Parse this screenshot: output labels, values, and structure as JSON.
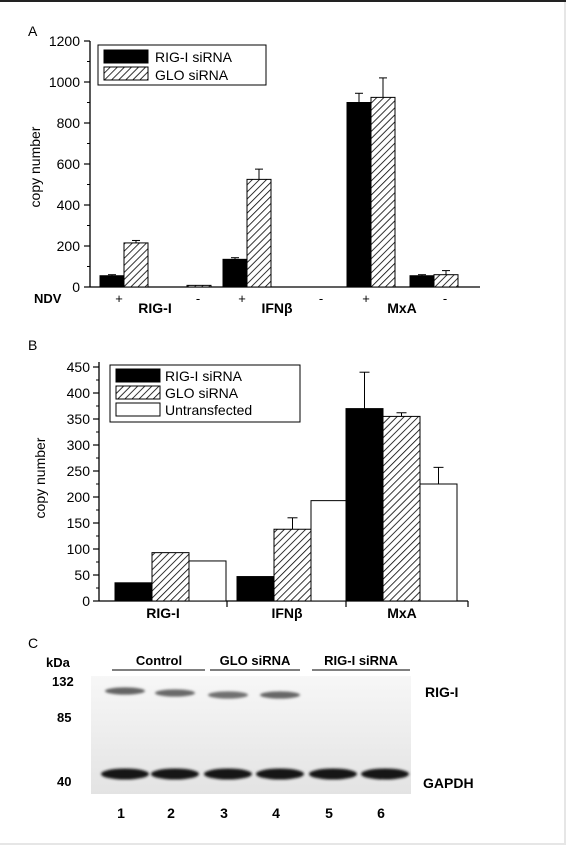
{
  "panel_labels": {
    "a": "A",
    "b": "B",
    "c": "C"
  },
  "colors": {
    "rig_i_sirna": "#000000",
    "glo_sirna": "hatched",
    "untransfected": "#ffffff"
  },
  "chart_data": [
    {
      "type": "bar",
      "panel": "A",
      "ylabel": "copy number",
      "ylim": [
        0,
        1200
      ],
      "yticks": [
        "0",
        "200",
        "400",
        "600",
        "800",
        "1000",
        "1200"
      ],
      "xlabel_prefix": "NDV",
      "categories": [
        "RIG-I",
        "IFNβ",
        "MxA"
      ],
      "conditions": [
        "+",
        "-"
      ],
      "legend": [
        "RIG-I siRNA",
        "GLO siRNA"
      ],
      "legend_position": "top-left",
      "series": [
        {
          "name": "RIG-I siRNA",
          "values": [
            [
              55,
              0
            ],
            [
              135,
              0
            ],
            [
              900,
              55
            ]
          ],
          "errors": [
            [
              5,
              0
            ],
            [
              8,
              0
            ],
            [
              45,
              5
            ]
          ]
        },
        {
          "name": "GLO siRNA",
          "values": [
            [
              215,
              8
            ],
            [
              525,
              0
            ],
            [
              925,
              60
            ]
          ],
          "errors": [
            [
              12,
              0
            ],
            [
              50,
              0
            ],
            [
              95,
              20
            ]
          ]
        }
      ]
    },
    {
      "type": "bar",
      "panel": "B",
      "ylabel": "copy number",
      "ylim": [
        0,
        450
      ],
      "yticks": [
        "0",
        "50",
        "100",
        "150",
        "200",
        "250",
        "300",
        "350",
        "400",
        "450"
      ],
      "categories": [
        "RIG-I",
        "IFNβ",
        "MxA"
      ],
      "legend": [
        "RIG-I siRNA",
        "GLO siRNA",
        "Untransfected"
      ],
      "legend_position": "top-left",
      "series": [
        {
          "name": "RIG-I siRNA",
          "values": [
            35,
            47,
            370
          ],
          "errors": [
            0,
            0,
            70
          ]
        },
        {
          "name": "GLO siRNA",
          "values": [
            93,
            138,
            355
          ],
          "errors": [
            0,
            22,
            7
          ]
        },
        {
          "name": "Untransfected",
          "values": [
            77,
            193,
            225
          ],
          "errors": [
            0,
            0,
            32
          ]
        }
      ]
    }
  ],
  "blot": {
    "kda_label": "kDa",
    "markers": [
      "132",
      "85",
      "40"
    ],
    "groups": [
      "Control",
      "GLO siRNA",
      "RIG-I siRNA"
    ],
    "band_labels": [
      "RIG-I",
      "GAPDH"
    ],
    "lanes": [
      "1",
      "2",
      "3",
      "4",
      "5",
      "6"
    ],
    "rig_i_intensity": [
      0.85,
      0.75,
      0.65,
      0.8,
      0,
      0
    ],
    "gapdh_intensity": [
      1,
      1,
      1,
      1,
      0.95,
      0.95
    ]
  }
}
